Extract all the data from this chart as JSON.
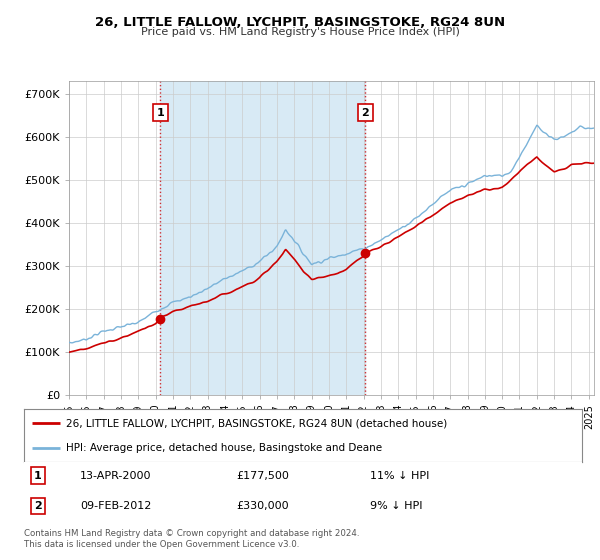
{
  "title": "26, LITTLE FALLOW, LYCHPIT, BASINGSTOKE, RG24 8UN",
  "subtitle": "Price paid vs. HM Land Registry's House Price Index (HPI)",
  "xlim_start": 1995.0,
  "xlim_end": 2025.3,
  "ylim_bottom": 0,
  "ylim_top": 730000,
  "yticks": [
    0,
    100000,
    200000,
    300000,
    400000,
    500000,
    600000,
    700000
  ],
  "ytick_labels": [
    "£0",
    "£100K",
    "£200K",
    "£300K",
    "£400K",
    "£500K",
    "£600K",
    "£700K"
  ],
  "hpi_color": "#7ab3d9",
  "price_color": "#cc0000",
  "shade_color": "#d8eaf5",
  "marker1_date": 2000.27,
  "marker1_price": 177500,
  "marker2_date": 2012.1,
  "marker2_price": 330000,
  "legend_line1": "26, LITTLE FALLOW, LYCHPIT, BASINGSTOKE, RG24 8UN (detached house)",
  "legend_line2": "HPI: Average price, detached house, Basingstoke and Deane",
  "annotation1_date": "13-APR-2000",
  "annotation1_price": "£177,500",
  "annotation1_hpi": "11% ↓ HPI",
  "annotation2_date": "09-FEB-2012",
  "annotation2_price": "£330,000",
  "annotation2_hpi": "9% ↓ HPI",
  "footer": "Contains HM Land Registry data © Crown copyright and database right 2024.\nThis data is licensed under the Open Government Licence v3.0.",
  "background_color": "#ffffff",
  "grid_color": "#cccccc",
  "hpi_anchors_x": [
    1995,
    1996,
    1997,
    1998,
    1999,
    2000,
    2001,
    2002,
    2003,
    2004,
    2005,
    2006,
    2007,
    2007.5,
    2008,
    2008.5,
    2009,
    2009.5,
    2010,
    2010.5,
    2011,
    2011.5,
    2012,
    2013,
    2014,
    2015,
    2016,
    2017,
    2018,
    2019,
    2020,
    2020.5,
    2021,
    2021.5,
    2022,
    2022.5,
    2023,
    2023.5,
    2024,
    2024.5,
    2025
  ],
  "hpi_anchors_y": [
    120000,
    130000,
    148000,
    158000,
    168000,
    195000,
    215000,
    228000,
    248000,
    270000,
    288000,
    310000,
    345000,
    385000,
    360000,
    330000,
    305000,
    310000,
    318000,
    322000,
    330000,
    335000,
    340000,
    360000,
    385000,
    410000,
    445000,
    475000,
    490000,
    510000,
    510000,
    520000,
    555000,
    590000,
    625000,
    610000,
    595000,
    600000,
    610000,
    625000,
    620000
  ],
  "price_anchors_x": [
    1995,
    1996,
    1997,
    1998,
    1999,
    2000,
    2000.27,
    2001,
    2002,
    2003,
    2004,
    2005,
    2006,
    2007,
    2007.5,
    2008,
    2008.5,
    2009,
    2009.5,
    2010,
    2010.5,
    2011,
    2011.5,
    2012,
    2012.1,
    2013,
    2014,
    2015,
    2016,
    2017,
    2018,
    2019,
    2020,
    2021,
    2022,
    2022.5,
    2023,
    2023.5,
    2024,
    2025
  ],
  "price_anchors_y": [
    100000,
    108000,
    120000,
    132000,
    148000,
    165000,
    177500,
    193000,
    205000,
    218000,
    235000,
    252000,
    272000,
    310000,
    338000,
    315000,
    290000,
    270000,
    272000,
    278000,
    282000,
    292000,
    308000,
    322000,
    330000,
    345000,
    368000,
    392000,
    418000,
    448000,
    462000,
    478000,
    480000,
    520000,
    555000,
    535000,
    520000,
    525000,
    535000,
    540000
  ]
}
